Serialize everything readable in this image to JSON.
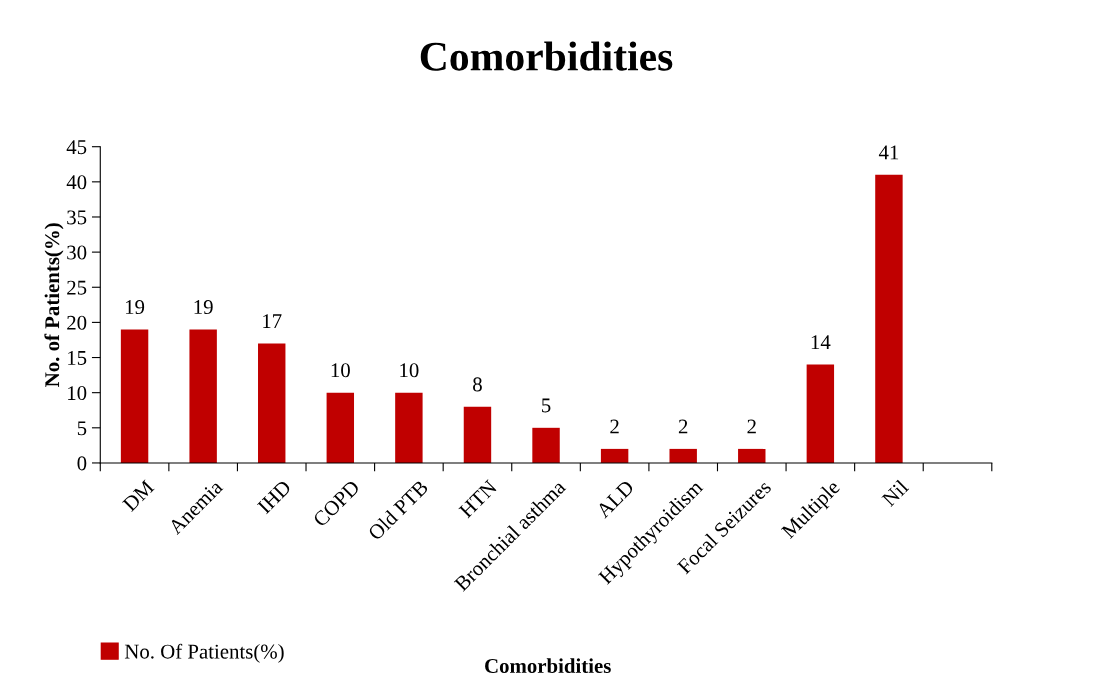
{
  "chart_data": {
    "type": "bar",
    "title": "Comorbidities",
    "xlabel": "Comorbidities",
    "ylabel": "No. of Patients(%)",
    "categories": [
      "DM",
      "Anemia",
      "IHD",
      "COPD",
      "Old PTB",
      "HTN",
      "Bronchial asthma",
      "ALD",
      "Hypothyroidism",
      "Focal Seizures",
      "Multiple",
      "Nil",
      null
    ],
    "series": [
      {
        "name": "No. Of Patients(%)",
        "color": "#c00000",
        "values": [
          19,
          19,
          17,
          10,
          10,
          8,
          5,
          2,
          2,
          2,
          14,
          41,
          null
        ]
      }
    ],
    "ylim": [
      0,
      45
    ],
    "yticks": [
      0,
      5,
      10,
      15,
      20,
      25,
      30,
      35,
      40,
      45
    ],
    "data_labels": true,
    "grid": false,
    "legend": "bottom left"
  }
}
